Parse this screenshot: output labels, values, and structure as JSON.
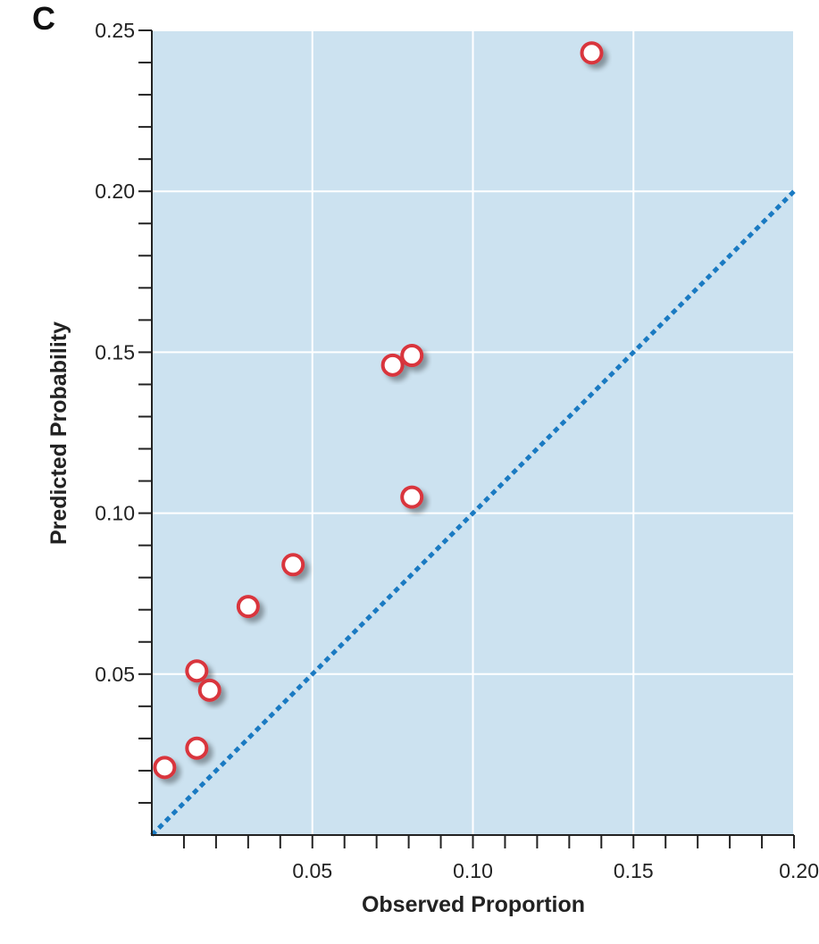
{
  "panel_label": "C",
  "chart_data": {
    "type": "scatter",
    "xlabel": "Observed Proportion",
    "ylabel": "Predicted Probability",
    "xlim": [
      0,
      0.2
    ],
    "ylim": [
      0,
      0.25
    ],
    "x_ticks": [
      "0.05",
      "0.10",
      "0.15",
      "0.20"
    ],
    "y_ticks": [
      "0.05",
      "0.10",
      "0.15",
      "0.20",
      "0.25"
    ],
    "grid": true,
    "reference_line": {
      "type": "identity",
      "style": "dotted",
      "color": "#1a7ac2"
    },
    "colors": {
      "background": "#cce2f0",
      "grid": "#ffffff",
      "marker_edge": "#d9363e",
      "marker_fill": "#ffffff"
    },
    "points": [
      {
        "x": 0.004,
        "y": 0.021
      },
      {
        "x": 0.014,
        "y": 0.027
      },
      {
        "x": 0.014,
        "y": 0.051
      },
      {
        "x": 0.018,
        "y": 0.045
      },
      {
        "x": 0.03,
        "y": 0.071
      },
      {
        "x": 0.044,
        "y": 0.084
      },
      {
        "x": 0.075,
        "y": 0.146
      },
      {
        "x": 0.081,
        "y": 0.149
      },
      {
        "x": 0.081,
        "y": 0.105
      },
      {
        "x": 0.137,
        "y": 0.243
      }
    ]
  }
}
